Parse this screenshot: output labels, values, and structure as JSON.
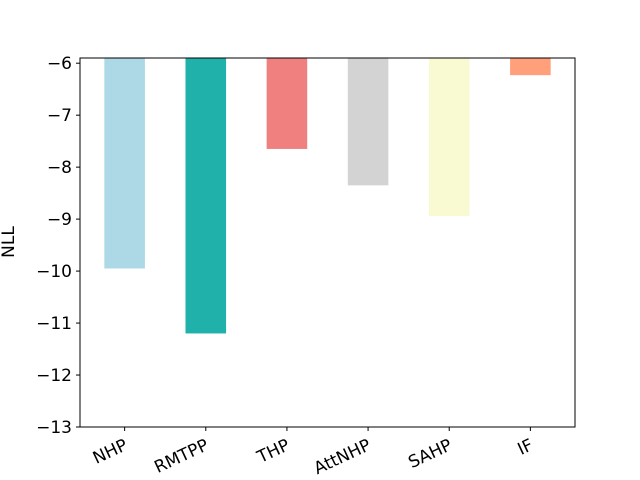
{
  "chart_data": {
    "type": "bar",
    "y_label": "NLL",
    "categories": [
      "NHP",
      "RMTPP",
      "THP",
      "AttNHP",
      "SAHP",
      "IF"
    ],
    "values": [
      -9.95,
      -11.2,
      -7.65,
      -8.35,
      -8.94,
      -6.23
    ],
    "colors": [
      "#add8e6",
      "#20b2aa",
      "#f08080",
      "#d3d3d3",
      "#fafad2",
      "#ffa07a"
    ],
    "ylim": [
      -13,
      -5.9
    ],
    "yticks": [
      {
        "value": -13,
        "label": "−13"
      },
      {
        "value": -12,
        "label": "−12"
      },
      {
        "value": -11,
        "label": "−11"
      },
      {
        "value": -10,
        "label": "−10"
      },
      {
        "value": -9,
        "label": "−9"
      },
      {
        "value": -8,
        "label": "−8"
      },
      {
        "value": -7,
        "label": "−7"
      },
      {
        "value": -6,
        "label": "−6"
      }
    ]
  }
}
